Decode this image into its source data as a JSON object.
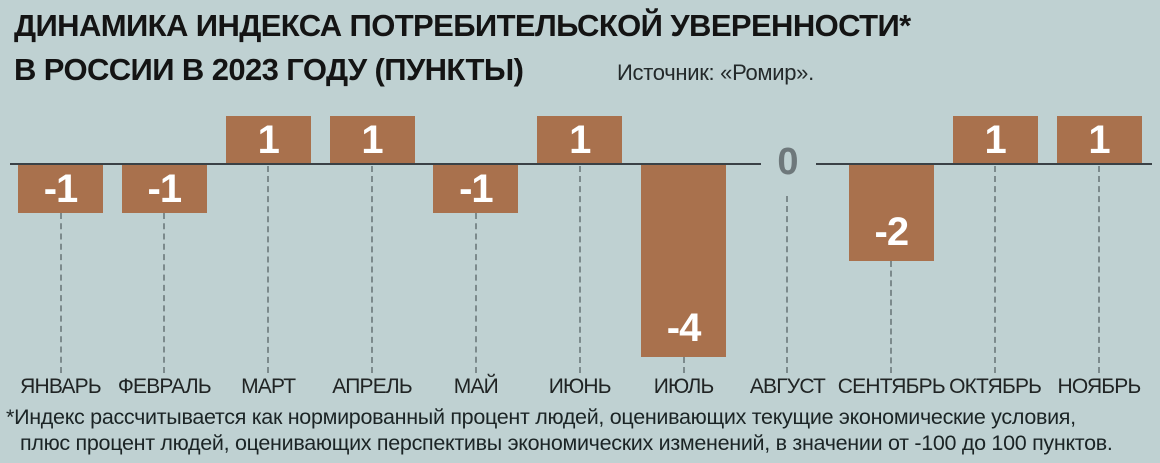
{
  "header": {
    "title_line1": "ДИНАМИКА ИНДЕКСА ПОТРЕБИТЕЛЬСКОЙ УВЕРЕННОСТИ*",
    "title_line2": "В РОССИИ В 2023 ГОДУ (ПУНКТЫ)",
    "source": "Источник: «Ромир»."
  },
  "chart_data": {
    "type": "bar",
    "title": "Динамика индекса потребительской уверенности в России в 2023 году (пункты)",
    "categories": [
      "ЯНВАРЬ",
      "ФЕВРАЛЬ",
      "МАРТ",
      "АПРЕЛЬ",
      "МАЙ",
      "ИЮНЬ",
      "ИЮЛЬ",
      "АВГУСТ",
      "СЕНТЯБРЬ",
      "ОКТЯБРЬ",
      "НОЯБРЬ"
    ],
    "values": [
      -1,
      -1,
      1,
      1,
      -1,
      1,
      -4,
      0,
      -2,
      1,
      1
    ],
    "value_labels": [
      "-1",
      "-1",
      "1",
      "1",
      "-1",
      "1",
      "-4",
      "0",
      "-2",
      "1",
      "1"
    ],
    "zero_axis_label": "0",
    "xlabel": "",
    "ylabel": "",
    "ylim": [
      -4,
      1
    ],
    "grid": "dashed-vertical-leaders",
    "legend": "none",
    "colors": {
      "bar": "#a9714d",
      "bar_value_text": "#ffffff",
      "axis_line": "#3a4146",
      "dash_line": "#7c8a8c",
      "zero_label": "#6e787b"
    }
  },
  "footnote": {
    "line1": "*Индекс рассчитывается как нормированный процент людей, оценивающих текущие экономические условия,",
    "line2": "плюс процент людей, оценивающих перспективы экономических изменений, в значении от -100 до 100 пунктов."
  },
  "colors": {
    "background": "#bfd1d2",
    "title_text": "#141414",
    "month_text": "#202424",
    "footnote_text": "#1b2425"
  }
}
